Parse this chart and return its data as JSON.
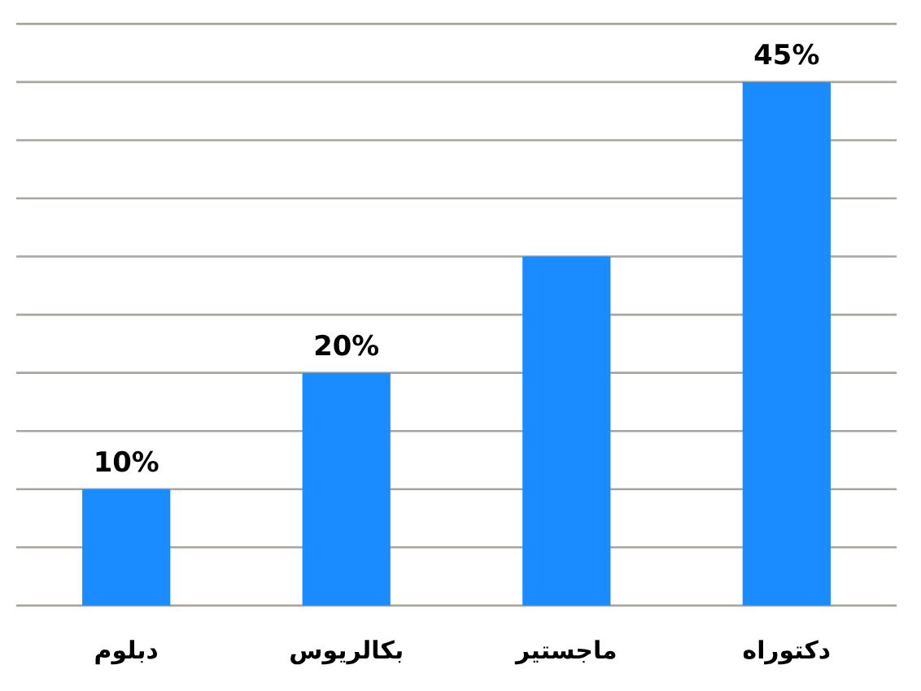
{
  "chart_data": {
    "type": "bar",
    "categories": [
      "دبلوم",
      "بكالريوس",
      "ماجستير",
      "دكتوراه"
    ],
    "values": [
      10,
      20,
      30,
      45
    ],
    "color": "#1a8cff",
    "value_labels": [
      "10%",
      "20%",
      null,
      "45%"
    ],
    "ylim": [
      0,
      50
    ],
    "yticks": [
      0,
      5,
      10,
      15,
      20,
      25,
      30,
      35,
      40,
      45,
      50
    ],
    "grid": "y",
    "tick_labels": "x"
  }
}
